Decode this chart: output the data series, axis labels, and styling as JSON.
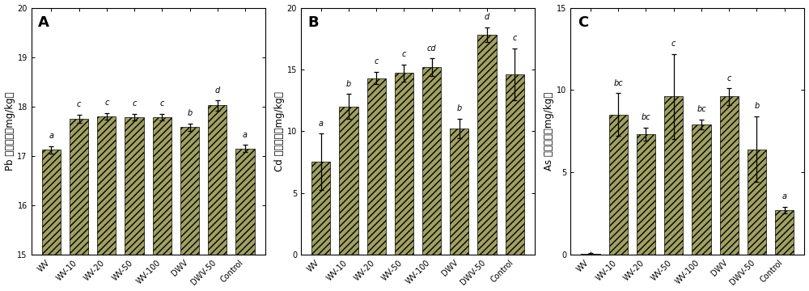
{
  "categories": [
    "WV",
    "WV-10",
    "WV-20",
    "WV-50",
    "WV-100",
    "DWV",
    "DWV-50",
    "Control"
  ],
  "panel_A": {
    "label": "A",
    "ylabel": "Pb 的吸附量（mg/kg）",
    "ylim": [
      15,
      20
    ],
    "yticks": [
      15,
      16,
      17,
      18,
      19,
      20
    ],
    "values": [
      17.12,
      17.75,
      17.8,
      17.78,
      17.78,
      17.58,
      18.02,
      17.15
    ],
    "errors": [
      0.08,
      0.08,
      0.07,
      0.07,
      0.07,
      0.07,
      0.1,
      0.07
    ],
    "letters": [
      "a",
      "c",
      "c",
      "c",
      "c",
      "b",
      "d",
      "a"
    ]
  },
  "panel_B": {
    "label": "B",
    "ylabel": "Cd 的吸附量（mg/kg）",
    "ylim": [
      0,
      20
    ],
    "yticks": [
      0,
      5,
      10,
      15,
      20
    ],
    "values": [
      7.5,
      12.0,
      14.3,
      14.7,
      15.2,
      10.2,
      17.8,
      14.6
    ],
    "errors": [
      2.3,
      1.0,
      0.5,
      0.7,
      0.7,
      0.8,
      0.6,
      2.1
    ],
    "letters": [
      "a",
      "b",
      "c",
      "c",
      "cd",
      "b",
      "d",
      "c"
    ]
  },
  "panel_C": {
    "label": "C",
    "ylabel": "As 的吸附量（mg/kg）",
    "ylim": [
      0,
      15
    ],
    "yticks": [
      0,
      5,
      10,
      15
    ],
    "values": [
      0.05,
      8.5,
      7.3,
      9.6,
      7.9,
      9.6,
      6.4,
      2.7
    ],
    "errors": [
      0.05,
      1.3,
      0.4,
      2.6,
      0.3,
      0.5,
      2.0,
      0.2
    ],
    "letters": [
      "",
      "bc",
      "bc",
      "c",
      "bc",
      "c",
      "b",
      "a"
    ]
  },
  "bar_facecolor": "#a0a060",
  "bar_edgecolor": "#000000",
  "hatch": "////",
  "letter_fontsize": 7,
  "panel_label_fontsize": 13,
  "ylabel_fontsize": 8.5,
  "tick_fontsize": 7,
  "background_color": "#ffffff",
  "figsize": [
    10.0,
    3.6
  ],
  "dpi": 100
}
